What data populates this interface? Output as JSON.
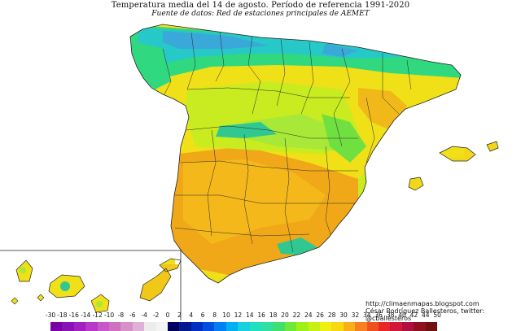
{
  "header": {
    "title": "Temperatura media del 14 de agosto. Período de referencia 1991-2020",
    "subtitle": "Fuente de datos: Red de estaciones principales de AEMET"
  },
  "credits": {
    "url": "http://climaenmapas.blogspot.com",
    "author": "César Rodríguez Ballesteros, twitter: @cballesteros"
  },
  "map": {
    "regions": [
      "Peninsula",
      "Baleares",
      "Canarias"
    ],
    "dominant_temperature_range": "20 - 28",
    "colors": {
      "cold_north_coast": "#27c8c8",
      "mountain_blue": "#3aa8d8",
      "mild": "#2fd870",
      "warm_green": "#a8e838",
      "warm_yellow": "#f0e018",
      "hot_orange": "#f0a818",
      "border": "#222222",
      "sea": "#ffffff"
    }
  },
  "legend": {
    "ticks": [
      "-30",
      "-18",
      "-16",
      "-14",
      "-12",
      "-10",
      "-8",
      "-6",
      "-4",
      "-2",
      "0",
      "2",
      "4",
      "6",
      "8",
      "10",
      "12",
      "14",
      "16",
      "18",
      "20",
      "22",
      "24",
      "26",
      "28",
      "30",
      "32",
      "34",
      "36",
      "38",
      "40",
      "42",
      "44",
      "50"
    ],
    "colors": [
      "#7a00a8",
      "#8a10b8",
      "#a020c0",
      "#b838c8",
      "#c858c8",
      "#d070c0",
      "#d890c8",
      "#e0b0d8",
      "#ececec",
      "#f4f4f4",
      "#000060",
      "#001890",
      "#0030c0",
      "#0050e0",
      "#0080f0",
      "#00b0f0",
      "#18d0e0",
      "#20e0c0",
      "#30e0a0",
      "#40e070",
      "#70e838",
      "#a0f018",
      "#c8f010",
      "#f0f010",
      "#f8d810",
      "#f8b018",
      "#f88020",
      "#f05020",
      "#e82828",
      "#d01838",
      "#b01040",
      "#901020",
      "#701010"
    ]
  }
}
